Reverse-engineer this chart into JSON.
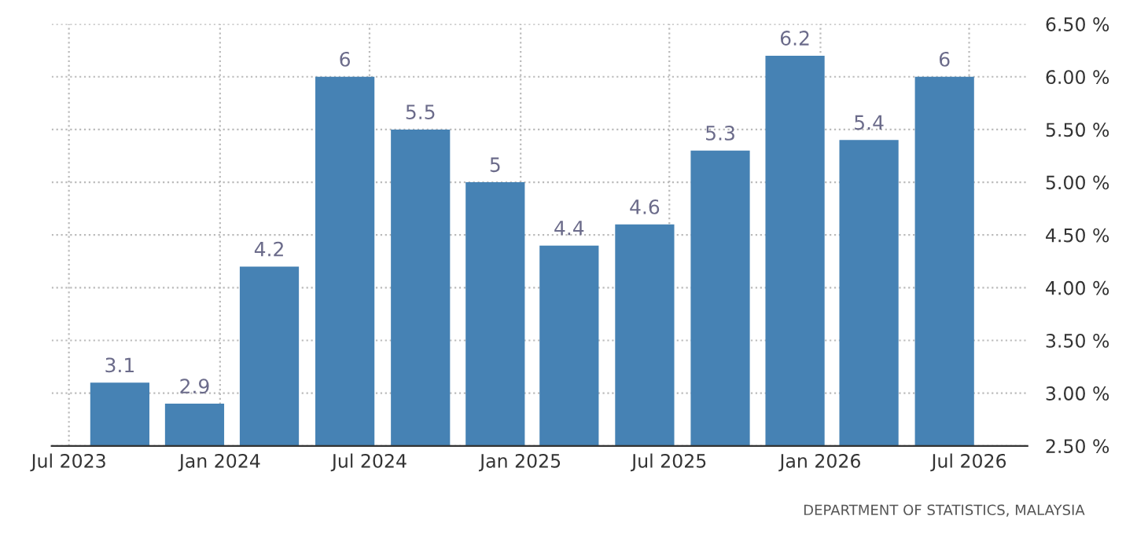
{
  "chart_data": {
    "type": "bar",
    "x": [
      "2023-09",
      "2023-12",
      "2024-03",
      "2024-06",
      "2024-09",
      "2024-12",
      "2025-03",
      "2025-06",
      "2025-09",
      "2025-12",
      "2026-03",
      "2026-06"
    ],
    "values": [
      3.1,
      2.9,
      4.2,
      6,
      5.5,
      5,
      4.4,
      4.6,
      5.3,
      6.2,
      5.4,
      6
    ],
    "color": "#4682b4",
    "data_labels": true,
    "xlim": [
      "2023-06-10",
      "2026-09-10"
    ],
    "xticks": [
      {
        "value": "2023-07",
        "label": "Jul 2023"
      },
      {
        "value": "2024-01",
        "label": "Jan 2024"
      },
      {
        "value": "2024-07",
        "label": "Jul 2024"
      },
      {
        "value": "2025-01",
        "label": "Jan 2025"
      },
      {
        "value": "2025-07",
        "label": "Jul 2025"
      },
      {
        "value": "2026-01",
        "label": "Jan 2026"
      },
      {
        "value": "2026-07",
        "label": "Jul 2026"
      }
    ],
    "ylim": [
      2.5,
      6.5
    ],
    "yticks": [
      {
        "value": 2.5,
        "label": "2.50 %"
      },
      {
        "value": 3,
        "label": "3.00 %"
      },
      {
        "value": 3.5,
        "label": "3.50 %"
      },
      {
        "value": 4,
        "label": "4.00 %"
      },
      {
        "value": 4.5,
        "label": "4.50 %"
      },
      {
        "value": 5,
        "label": "5.00 %"
      },
      {
        "value": 5.5,
        "label": "5.50 %"
      },
      {
        "value": 6,
        "label": "6.00 %"
      },
      {
        "value": 6.5,
        "label": "6.50 %"
      }
    ],
    "grid": true,
    "annotations": [
      "DEPARTMENT OF STATISTICS, MALAYSIA"
    ]
  }
}
